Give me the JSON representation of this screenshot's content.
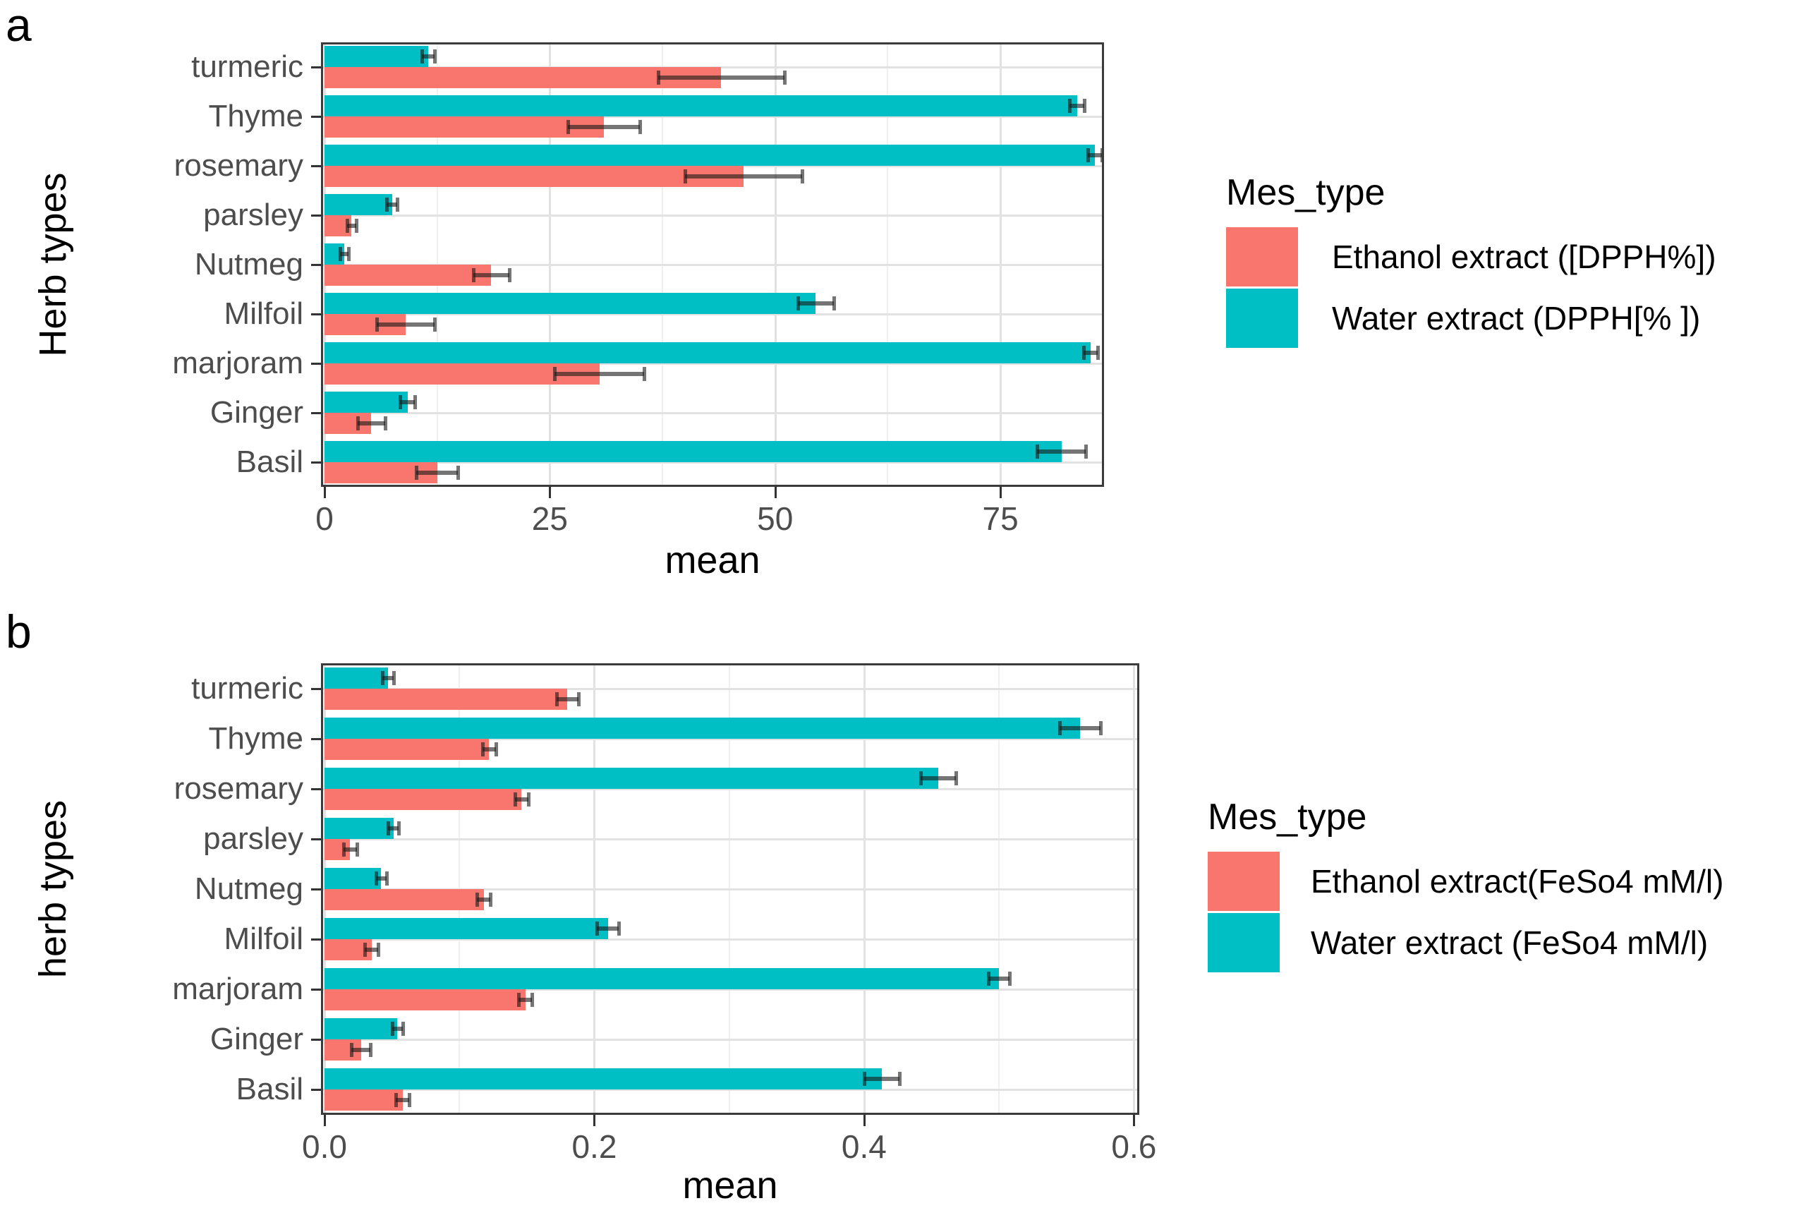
{
  "figure_title": "",
  "chart_data": [
    {
      "type": "bar",
      "orientation": "horizontal",
      "panel_label": "a",
      "xlabel": "mean",
      "ylabel": "Herb types",
      "grid": true,
      "xlim": [
        0,
        86.5
      ],
      "categories": [
        "turmeric",
        "Thyme",
        "rosemary",
        "parsley",
        "Nutmeg",
        "Milfoil",
        "marjoram",
        "Ginger",
        "Basil"
      ],
      "series": [
        {
          "name": "Water extract (DPPH[% ])",
          "color": "#00BFC4",
          "values": [
            11.5,
            83.5,
            85.5,
            7.5,
            2.2,
            54.5,
            85.0,
            9.2,
            81.8
          ],
          "errors": [
            0.7,
            0.8,
            0.8,
            0.6,
            0.5,
            2.0,
            0.8,
            0.8,
            2.7
          ]
        },
        {
          "name": "Ethanol extract ([DPPH%])",
          "color": "#F8766D",
          "values": [
            44.0,
            31.0,
            46.5,
            3.0,
            18.5,
            9.0,
            30.5,
            5.2,
            12.5
          ],
          "errors": [
            7.0,
            4.0,
            6.5,
            0.5,
            2.0,
            3.2,
            5.0,
            1.5,
            2.3
          ]
        }
      ],
      "x_ticks": [
        {
          "value": 0,
          "label": "0"
        },
        {
          "value": 25,
          "label": "25"
        },
        {
          "value": 50,
          "label": "50"
        },
        {
          "value": 75,
          "label": "75"
        }
      ],
      "x_minor": [
        12.5,
        37.5,
        62.5
      ],
      "legend": {
        "title": "Mes_type",
        "position": "right",
        "entries": [
          {
            "label": "Ethanol extract ([DPPH%])",
            "color": "#F8766D"
          },
          {
            "label": "Water extract (DPPH[% ])",
            "color": "#00BFC4"
          }
        ]
      }
    },
    {
      "type": "bar",
      "orientation": "horizontal",
      "panel_label": "b",
      "xlabel": "mean",
      "ylabel": "herb types",
      "grid": true,
      "xlim": [
        0,
        0.604
      ],
      "categories": [
        "turmeric",
        "Thyme",
        "rosemary",
        "parsley",
        "Nutmeg",
        "Milfoil",
        "marjoram",
        "Ginger",
        "Basil"
      ],
      "series": [
        {
          "name": "Water extract (FeSo4 mM/l)",
          "color": "#00BFC4",
          "values": [
            0.047,
            0.56,
            0.455,
            0.051,
            0.042,
            0.21,
            0.5,
            0.054,
            0.413
          ],
          "errors": [
            0.004,
            0.015,
            0.013,
            0.004,
            0.004,
            0.008,
            0.008,
            0.004,
            0.013
          ]
        },
        {
          "name": "Ethanol extract(FeSo4 mM/l)",
          "color": "#F8766D",
          "values": [
            0.18,
            0.122,
            0.146,
            0.019,
            0.118,
            0.035,
            0.149,
            0.027,
            0.058
          ],
          "errors": [
            0.008,
            0.005,
            0.005,
            0.005,
            0.005,
            0.005,
            0.005,
            0.007,
            0.005
          ]
        }
      ],
      "x_ticks": [
        {
          "value": 0,
          "label": "0.0"
        },
        {
          "value": 0.2,
          "label": "0.2"
        },
        {
          "value": 0.4,
          "label": "0.4"
        },
        {
          "value": 0.6,
          "label": "0.6"
        }
      ],
      "x_minor": [
        0.1,
        0.3,
        0.5
      ],
      "legend": {
        "title": "Mes_type",
        "position": "right",
        "entries": [
          {
            "label": "Ethanol extract(FeSo4 mM/l)",
            "color": "#F8766D"
          },
          {
            "label": "Water extract (FeSo4 mM/l)",
            "color": "#00BFC4"
          }
        ]
      }
    }
  ]
}
